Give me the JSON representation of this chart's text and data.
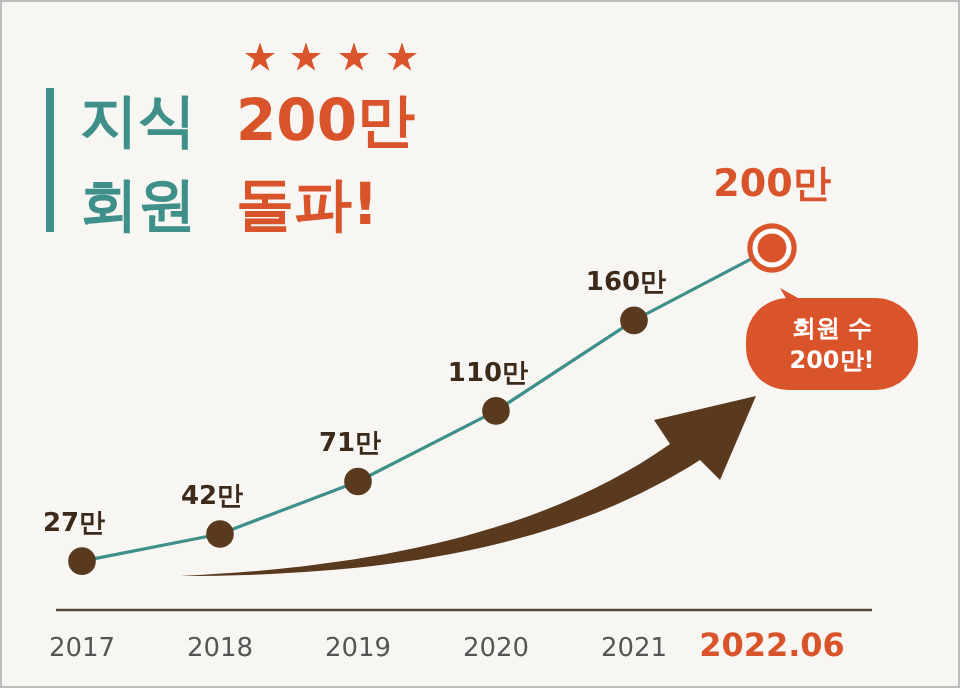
{
  "chart_data": {
    "type": "line",
    "title": "지식 200만 회원 돌파!",
    "categories": [
      "2017",
      "2018",
      "2019",
      "2020",
      "2021",
      "2022.06"
    ],
    "series": [
      {
        "color": "#3f8f8a",
        "colors": [
          "#5a3a1e",
          "#5a3a1e",
          "#5a3a1e",
          "#5a3a1e",
          "#5a3a1e",
          "#d9542b"
        ],
        "values": [
          27,
          42,
          71,
          110,
          160,
          200
        ],
        "value_labels": [
          "27만",
          "42만",
          "71만",
          "110만",
          "160만",
          "200만"
        ]
      }
    ],
    "tick_labels": "x",
    "marker": "circle",
    "line_style": "solid",
    "grid": false,
    "annotations": [
      {
        "text": "회원 수 200만!",
        "x": "2022.06",
        "y": 200
      }
    ]
  }
}
